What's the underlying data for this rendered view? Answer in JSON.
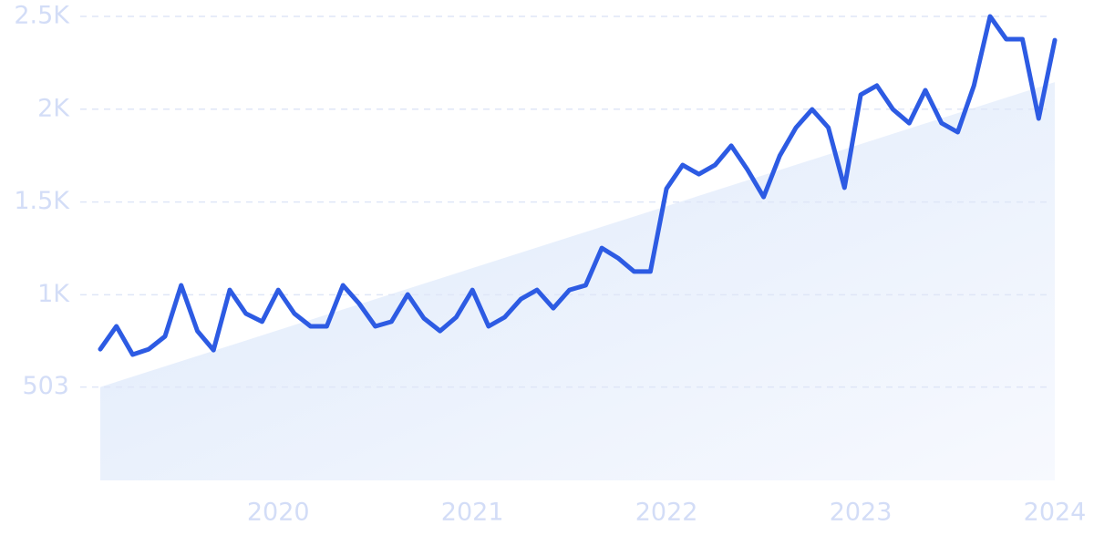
{
  "chart_data": {
    "type": "line",
    "categories": [
      null,
      null,
      null,
      null,
      null,
      null,
      null,
      null,
      null,
      null,
      null,
      "2020",
      null,
      null,
      null,
      null,
      null,
      null,
      null,
      null,
      null,
      null,
      null,
      "2021",
      null,
      null,
      null,
      null,
      null,
      null,
      null,
      null,
      null,
      null,
      null,
      "2022",
      null,
      null,
      null,
      null,
      null,
      null,
      null,
      null,
      null,
      null,
      null,
      "2023",
      null,
      null,
      null,
      null,
      null,
      null,
      null,
      null,
      null,
      null,
      null,
      "2024"
    ],
    "values": [
      707,
      830,
      678,
      707,
      776,
      1051,
      805,
      702,
      1026,
      899,
      855,
      1026,
      899,
      830,
      830,
      1051,
      953,
      830,
      855,
      1002,
      874,
      805,
      879,
      1026,
      830,
      879,
      977,
      1026,
      928,
      1026,
      1051,
      1252,
      1198,
      1125,
      1125,
      1572,
      1699,
      1650,
      1699,
      1803,
      1675,
      1527,
      1749,
      1901,
      1999,
      1901,
      1577,
      2078,
      2127,
      1999,
      1925,
      2102,
      1925,
      1876,
      2127,
      2500,
      2377,
      2377,
      1950,
      2372
    ],
    "trend": [
      503,
      2146
    ],
    "color": "#2d5be3",
    "ylim": [
      0,
      2500
    ],
    "yticks": [
      503,
      {
        "value": 1000,
        "label": "1K"
      },
      {
        "value": 1500,
        "label": "1.5K"
      },
      {
        "value": 2000,
        "label": "2K"
      },
      {
        "value": 2500,
        "label": "2.5K"
      }
    ],
    "grid": true
  }
}
